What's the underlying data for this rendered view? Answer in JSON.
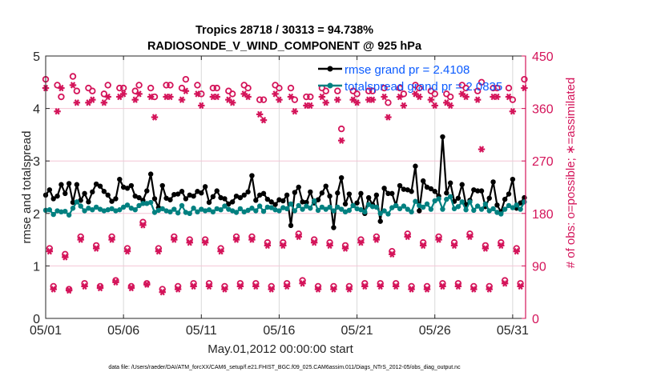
{
  "chart_data": {
    "type": "line",
    "title_line1": "Tropics 28718 / 30313 = 94.738%",
    "title_line2": "RADIOSONDE_V_WIND_COMPONENT @ 925 hPa",
    "xlabel": "May.01,2012 00:00:00 start",
    "ylabel": "rmse and totalspread",
    "ylabel_right": "# of obs: o=possible; ∗=assimilated",
    "footnote": "data file: /Users/raeder/DAI/ATM_forcXX/CAM6_setup/f.e21.FHIST_BGC.f09_025.CAM6assim.011/Diags_NTrS_2012-05/obs_diag_output.nc",
    "x_tick_labels": [
      "05/01",
      "05/06",
      "05/11",
      "05/16",
      "05/21",
      "05/26",
      "05/31"
    ],
    "x_tick_days": [
      0,
      5,
      10,
      15,
      20,
      25,
      30
    ],
    "xlim_days": [
      0,
      30.83
    ],
    "ylim": [
      0,
      5
    ],
    "y_ticks": [
      0,
      1,
      2,
      3,
      4,
      5
    ],
    "ylim_right": [
      0,
      450
    ],
    "y_ticks_right": [
      0,
      90,
      180,
      270,
      360,
      450
    ],
    "grid": true,
    "time_step_hours": 6,
    "legend": [
      {
        "label": "rmse grand pr = 2.4108",
        "color": "#000000"
      },
      {
        "label": "totalspread grand pr = 2.0835",
        "color": "#008080"
      }
    ],
    "legend_position": "top-right",
    "series": [
      {
        "name": "rmse",
        "color": "#000000",
        "values": [
          2.35,
          2.45,
          2.28,
          2.33,
          2.55,
          2.38,
          2.57,
          2.21,
          2.55,
          2.25,
          2.38,
          2.22,
          2.41,
          2.56,
          2.52,
          2.42,
          2.35,
          2.23,
          2.28,
          2.65,
          2.5,
          2.48,
          2.53,
          2.33,
          2.3,
          2.25,
          2.43,
          2.75,
          2.28,
          2.11,
          2.53,
          2.29,
          2.26,
          2.36,
          2.37,
          2.42,
          2.28,
          2.35,
          2.33,
          2.42,
          2.39,
          2.51,
          2.21,
          2.32,
          2.43,
          2.3,
          2.28,
          2.18,
          2.22,
          2.33,
          2.3,
          2.35,
          2.41,
          2.72,
          2.25,
          2.35,
          2.38,
          2.27,
          2.22,
          2.17,
          2.26,
          2.24,
          2.35,
          1.77,
          2.4,
          2.5,
          2.22,
          2.21,
          2.41,
          2.2,
          2.26,
          2.39,
          2.52,
          2.33,
          1.73,
          2.39,
          2.68,
          2.18,
          2.37,
          2.15,
          2.2,
          2.38,
          2.0,
          2.3,
          2.17,
          2.35,
          1.85,
          2.48,
          2.38,
          2.38,
          2.15,
          2.53,
          2.46,
          2.45,
          2.42,
          2.9,
          2.05,
          2.62,
          2.5,
          2.47,
          2.42,
          2.33,
          3.46,
          2.39,
          2.58,
          2.23,
          2.29,
          2.55,
          2.17,
          2.25,
          2.45,
          2.43,
          2.43,
          2.13,
          2.29,
          2.6,
          2.16,
          2.03,
          2.27,
          2.37,
          2.65,
          2.1,
          2.2,
          2.3,
          2.75,
          2.1,
          2.22,
          2.38,
          2.58,
          2.42,
          2.63,
          2.3,
          2.57
        ]
      },
      {
        "name": "totalspread",
        "color": "#008080",
        "values": [
          2.06,
          2.07,
          1.98,
          2.05,
          2.03,
          2.04,
          1.97,
          2.1,
          2.22,
          2.14,
          2.05,
          2.1,
          2.07,
          2.12,
          2.08,
          2.05,
          2.07,
          2.09,
          2.05,
          2.07,
          2.12,
          2.16,
          2.1,
          2.07,
          2.15,
          2.19,
          2.19,
          2.21,
          2.02,
          2.06,
          2.09,
          2.05,
          2.03,
          2.08,
          2.01,
          2.15,
          2.02,
          2.0,
          2.1,
          2.03,
          2.08,
          2.05,
          2.07,
          2.03,
          2.09,
          2.07,
          2.14,
          2.08,
          2.05,
          2.02,
          2.09,
          2.03,
          2.06,
          2.1,
          2.05,
          2.14,
          2.04,
          2.12,
          2.11,
          2.07,
          2.05,
          2.11,
          2.09,
          2.18,
          2.05,
          2.15,
          2.08,
          2.14,
          2.1,
          2.24,
          2.06,
          2.12,
          2.08,
          2.12,
          2.05,
          2.12,
          2.08,
          2.03,
          2.06,
          2.15,
          2.09,
          2.07,
          2.03,
          2.17,
          2.13,
          2.12,
          2.0,
          2.05,
          1.99,
          2.11,
          2.15,
          2.09,
          2.14,
          2.08,
          2.03,
          2.23,
          2.15,
          2.12,
          2.18,
          2.08,
          2.24,
          2.28,
          2.08,
          2.27,
          2.32,
          2.09,
          2.13,
          2.22,
          2.07,
          2.22,
          2.06,
          2.14,
          2.08,
          2.18,
          2.05,
          2.09,
          2.02,
          1.99,
          2.08,
          2.15,
          2.11,
          2.16,
          2.08,
          2.22,
          2.11,
          2.02,
          2.16,
          2.07,
          2.12,
          2.08,
          2.04
        ]
      }
    ],
    "obs_possible": [
      410,
      120,
      55,
      400,
      380,
      110,
      50,
      415,
      390,
      140,
      60,
      395,
      390,
      125,
      55,
      385,
      400,
      140,
      65,
      395,
      395,
      120,
      55,
      390,
      400,
      165,
      60,
      395,
      380,
      120,
      50,
      400,
      400,
      140,
      55,
      395,
      410,
      135,
      60,
      400,
      385,
      135,
      60,
      395,
      395,
      120,
      55,
      390,
      385,
      140,
      60,
      400,
      395,
      140,
      60,
      375,
      375,
      130,
      55,
      400,
      395,
      130,
      60,
      395,
      375,
      145,
      65,
      380,
      380,
      135,
      55,
      395,
      390,
      130,
      55,
      390,
      325,
      125,
      55,
      390,
      385,
      135,
      60,
      390,
      390,
      140,
      60,
      395,
      370,
      115,
      60,
      395,
      385,
      145,
      55,
      400,
      395,
      130,
      55,
      390,
      385,
      140,
      60,
      385,
      380,
      130,
      60,
      400,
      395,
      145,
      55,
      390,
      405,
      125,
      55,
      395,
      395,
      130,
      65,
      395,
      375,
      120,
      60,
      410,
      395,
      130,
      60,
      395,
      385,
      135,
      55,
      410,
      395
    ],
    "obs_assimilated": [
      395,
      115,
      50,
      355,
      395,
      105,
      48,
      400,
      370,
      135,
      55,
      370,
      375,
      120,
      52,
      370,
      380,
      135,
      62,
      380,
      385,
      115,
      52,
      375,
      385,
      160,
      58,
      380,
      345,
      115,
      45,
      380,
      380,
      135,
      50,
      375,
      390,
      130,
      55,
      385,
      365,
      130,
      55,
      380,
      380,
      115,
      50,
      375,
      370,
      135,
      55,
      385,
      380,
      135,
      55,
      350,
      340,
      125,
      50,
      385,
      375,
      125,
      55,
      380,
      355,
      140,
      60,
      365,
      365,
      130,
      50,
      380,
      370,
      125,
      50,
      375,
      305,
      120,
      50,
      375,
      370,
      130,
      55,
      375,
      375,
      135,
      55,
      380,
      345,
      110,
      55,
      380,
      365,
      140,
      50,
      385,
      380,
      125,
      50,
      375,
      365,
      135,
      55,
      370,
      365,
      125,
      55,
      385,
      380,
      140,
      50,
      375,
      290,
      120,
      50,
      380,
      380,
      125,
      60,
      380,
      355,
      115,
      55,
      395,
      380,
      125,
      55,
      380,
      370,
      130,
      50,
      390,
      0
    ]
  }
}
